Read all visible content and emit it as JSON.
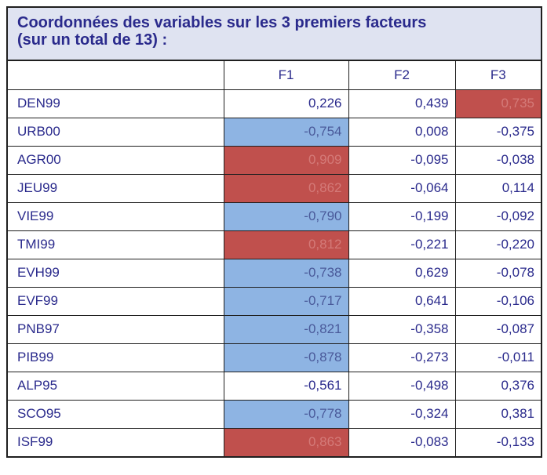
{
  "title_line1": "Coordonnées des variables sur les 3 premiers facteurs",
  "title_line2": "(sur un total de 13) :",
  "columns": [
    "",
    "F1",
    "F2",
    "F3"
  ],
  "colors": {
    "red_highlight": "#c0504d",
    "blue_highlight": "#8eb4e3",
    "text": "#2a2a8c",
    "title_bg": "#dfe3f1"
  },
  "rows": [
    {
      "label": "DEN99",
      "f1": "0,226",
      "f2": "0,439",
      "f3": "0,735",
      "hl": [
        "",
        "",
        "red"
      ]
    },
    {
      "label": "URB00",
      "f1": "-0,754",
      "f2": "0,008",
      "f3": "-0,375",
      "hl": [
        "blue",
        "",
        ""
      ]
    },
    {
      "label": "AGR00",
      "f1": "0,909",
      "f2": "-0,095",
      "f3": "-0,038",
      "hl": [
        "red",
        "",
        ""
      ]
    },
    {
      "label": "JEU99",
      "f1": "0,862",
      "f2": "-0,064",
      "f3": "0,114",
      "hl": [
        "red",
        "",
        ""
      ]
    },
    {
      "label": "VIE99",
      "f1": "-0,790",
      "f2": "-0,199",
      "f3": "-0,092",
      "hl": [
        "blue",
        "",
        ""
      ]
    },
    {
      "label": "TMI99",
      "f1": "0,812",
      "f2": "-0,221",
      "f3": "-0,220",
      "hl": [
        "red",
        "",
        ""
      ]
    },
    {
      "label": "EVH99",
      "f1": "-0,738",
      "f2": "0,629",
      "f3": "-0,078",
      "hl": [
        "blue",
        "",
        ""
      ]
    },
    {
      "label": "EVF99",
      "f1": "-0,717",
      "f2": "0,641",
      "f3": "-0,106",
      "hl": [
        "blue",
        "",
        ""
      ]
    },
    {
      "label": "PNB97",
      "f1": "-0,821",
      "f2": "-0,358",
      "f3": "-0,087",
      "hl": [
        "blue",
        "",
        ""
      ]
    },
    {
      "label": "PIB99",
      "f1": "-0,878",
      "f2": "-0,273",
      "f3": "-0,011",
      "hl": [
        "blue",
        "",
        ""
      ]
    },
    {
      "label": "ALP95",
      "f1": "-0,561",
      "f2": "-0,498",
      "f3": "0,376",
      "hl": [
        "",
        "",
        ""
      ]
    },
    {
      "label": "SCO95",
      "f1": "-0,778",
      "f2": "-0,324",
      "f3": "0,381",
      "hl": [
        "blue",
        "",
        ""
      ]
    },
    {
      "label": "ISF99",
      "f1": "0,863",
      "f2": "-0,083",
      "f3": "-0,133",
      "hl": [
        "red",
        "",
        ""
      ]
    }
  ]
}
